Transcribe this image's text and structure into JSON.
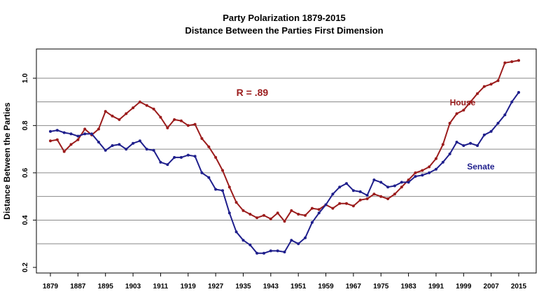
{
  "chart_data": {
    "type": "line",
    "title": "Party Polarization 1879-2015",
    "subtitle": "Distance Between the Parties First Dimension",
    "xlabel": "",
    "ylabel": "Distance Between the Parties",
    "xlim": [
      1879,
      2015
    ],
    "ylim": [
      0.2,
      1.1
    ],
    "yticks": [
      0.2,
      0.4,
      0.6,
      0.8,
      1.0
    ],
    "ytick_labels": [
      "0.2",
      "0.4",
      "0.6",
      "0.8",
      "1.0"
    ],
    "xticks": [
      1879,
      1887,
      1895,
      1903,
      1911,
      1919,
      1927,
      1935,
      1943,
      1951,
      1959,
      1967,
      1975,
      1983,
      1991,
      1999,
      2007,
      2015
    ],
    "xtick_labels": [
      "1879",
      "1887",
      "1895",
      "1903",
      "1911",
      "1919",
      "1927",
      "1935",
      "1943",
      "1951",
      "1959",
      "1967",
      "1975",
      "1983",
      "1991",
      "1999",
      "2007",
      "2015"
    ],
    "gridlines": [
      0.3,
      0.4,
      0.5,
      0.6,
      0.7,
      0.8,
      0.9,
      1.0
    ],
    "series": [
      {
        "name": "House",
        "color": "#9b1c1c",
        "x": [
          1879,
          1881,
          1883,
          1885,
          1887,
          1889,
          1891,
          1893,
          1895,
          1897,
          1899,
          1901,
          1903,
          1905,
          1907,
          1909,
          1911,
          1913,
          1915,
          1917,
          1919,
          1921,
          1923,
          1925,
          1927,
          1929,
          1931,
          1933,
          1935,
          1937,
          1939,
          1941,
          1943,
          1945,
          1947,
          1949,
          1951,
          1953,
          1955,
          1957,
          1959,
          1961,
          1963,
          1965,
          1967,
          1969,
          1971,
          1973,
          1975,
          1977,
          1979,
          1981,
          1983,
          1985,
          1987,
          1989,
          1991,
          1993,
          1995,
          1997,
          1999,
          2001,
          2003,
          2005,
          2007,
          2009,
          2011,
          2013,
          2015
        ],
        "values": [
          0.735,
          0.74,
          0.69,
          0.72,
          0.74,
          0.785,
          0.76,
          0.785,
          0.86,
          0.84,
          0.825,
          0.85,
          0.875,
          0.9,
          0.885,
          0.87,
          0.835,
          0.79,
          0.825,
          0.82,
          0.8,
          0.805,
          0.745,
          0.71,
          0.665,
          0.61,
          0.54,
          0.475,
          0.44,
          0.425,
          0.41,
          0.42,
          0.405,
          0.43,
          0.395,
          0.44,
          0.425,
          0.42,
          0.45,
          0.445,
          0.465,
          0.45,
          0.47,
          0.47,
          0.46,
          0.485,
          0.49,
          0.51,
          0.5,
          0.49,
          0.51,
          0.54,
          0.57,
          0.6,
          0.61,
          0.625,
          0.66,
          0.72,
          0.81,
          0.85,
          0.865,
          0.9,
          0.935,
          0.965,
          0.975,
          0.99,
          1.065,
          1.07,
          1.075
        ]
      },
      {
        "name": "Senate",
        "color": "#1f1f8c",
        "x": [
          1879,
          1881,
          1883,
          1885,
          1887,
          1889,
          1891,
          1893,
          1895,
          1897,
          1899,
          1901,
          1903,
          1905,
          1907,
          1909,
          1911,
          1913,
          1915,
          1917,
          1919,
          1921,
          1923,
          1925,
          1927,
          1929,
          1931,
          1933,
          1935,
          1937,
          1939,
          1941,
          1943,
          1945,
          1947,
          1949,
          1951,
          1953,
          1955,
          1957,
          1959,
          1961,
          1963,
          1965,
          1967,
          1969,
          1971,
          1973,
          1975,
          1977,
          1979,
          1981,
          1983,
          1985,
          1987,
          1989,
          1991,
          1993,
          1995,
          1997,
          1999,
          2001,
          2003,
          2005,
          2007,
          2009,
          2011,
          2013,
          2015
        ],
        "values": [
          0.775,
          0.78,
          0.77,
          0.765,
          0.755,
          0.765,
          0.765,
          0.73,
          0.695,
          0.715,
          0.72,
          0.7,
          0.725,
          0.735,
          0.7,
          0.695,
          0.645,
          0.635,
          0.665,
          0.665,
          0.675,
          0.67,
          0.6,
          0.58,
          0.53,
          0.525,
          0.43,
          0.35,
          0.315,
          0.295,
          0.26,
          0.26,
          0.27,
          0.27,
          0.265,
          0.315,
          0.3,
          0.325,
          0.39,
          0.43,
          0.465,
          0.51,
          0.54,
          0.555,
          0.525,
          0.52,
          0.505,
          0.57,
          0.56,
          0.54,
          0.545,
          0.56,
          0.56,
          0.585,
          0.59,
          0.6,
          0.615,
          0.645,
          0.68,
          0.73,
          0.715,
          0.725,
          0.715,
          0.76,
          0.775,
          0.81,
          0.845,
          0.9,
          0.94
        ]
      }
    ],
    "annotations": [
      {
        "text": "R = .89",
        "x": 1933,
        "y": 0.925,
        "color": "#9b1c1c"
      },
      {
        "text": "House",
        "x": 1995,
        "y": 0.885,
        "color": "#9b1c1c"
      },
      {
        "text": "Senate",
        "x": 2000,
        "y": 0.615,
        "color": "#1f1f8c"
      }
    ]
  }
}
